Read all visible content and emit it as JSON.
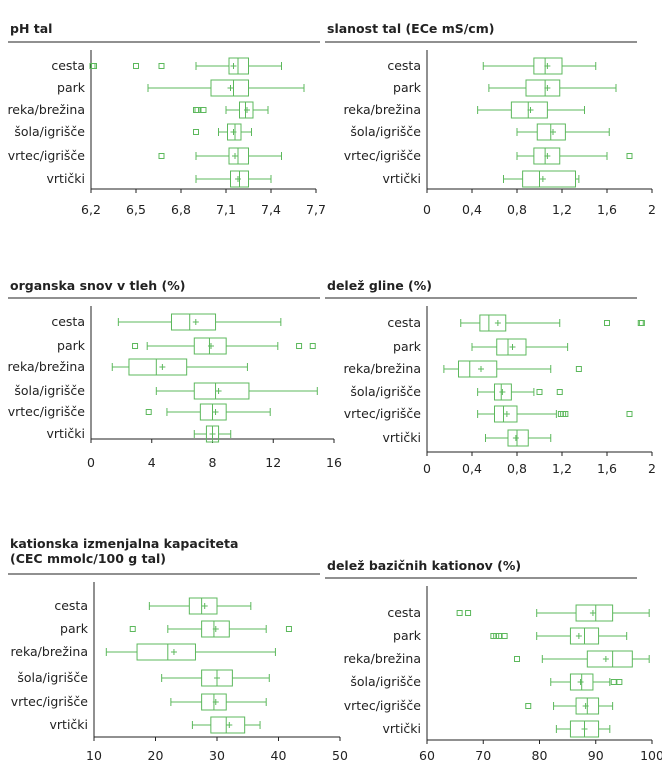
{
  "colors": {
    "box": "#5cb85c",
    "axis": "#222222",
    "text": "#222222"
  },
  "chart_data": [
    {
      "type": "boxplot",
      "title_lines": [
        "pH tal"
      ],
      "categories": [
        "cesta",
        "park",
        "reka/brežina",
        "šola/igrišče",
        "vrtec/igrišče",
        "vrtički"
      ],
      "xlim": [
        6.2,
        7.7
      ],
      "xticks": [
        6.2,
        6.5,
        6.8,
        7.1,
        7.4,
        7.7
      ],
      "xtick_labels": [
        "6,2",
        "6,5",
        "6,8",
        "7,1",
        "7,4",
        "7,7"
      ],
      "boxes": [
        {
          "whisker_low": 6.9,
          "q1": 7.12,
          "median": 7.18,
          "q3": 7.25,
          "whisker_high": 7.47,
          "mean": 7.15,
          "outliers": [
            6.21,
            6.22,
            6.5,
            6.67
          ]
        },
        {
          "whisker_low": 6.58,
          "q1": 7.0,
          "median": 7.15,
          "q3": 7.25,
          "whisker_high": 7.62,
          "mean": 7.13,
          "outliers": []
        },
        {
          "whisker_low": 7.1,
          "q1": 7.19,
          "median": 7.23,
          "q3": 7.28,
          "whisker_high": 7.38,
          "mean": 7.24,
          "outliers": [
            6.9,
            6.91,
            6.95
          ]
        },
        {
          "whisker_low": 7.05,
          "q1": 7.11,
          "median": 7.16,
          "q3": 7.2,
          "whisker_high": 7.27,
          "mean": 7.15,
          "outliers": [
            6.9
          ]
        },
        {
          "whisker_low": 6.9,
          "q1": 7.12,
          "median": 7.18,
          "q3": 7.25,
          "whisker_high": 7.47,
          "mean": 7.16,
          "outliers": [
            6.67
          ]
        },
        {
          "whisker_low": 6.9,
          "q1": 7.13,
          "median": 7.19,
          "q3": 7.25,
          "whisker_high": 7.4,
          "mean": 7.18,
          "outliers": []
        }
      ]
    },
    {
      "type": "boxplot",
      "title_lines": [
        "slanost tal (ECe mS/cm)"
      ],
      "categories": [
        "cesta",
        "park",
        "reka/brežina",
        "šola/igrišče",
        "vrtec/igrišče",
        "vrtički"
      ],
      "xlim": [
        0,
        2
      ],
      "xticks": [
        0,
        0.4,
        0.8,
        1.2,
        1.6,
        2
      ],
      "xtick_labels": [
        "0",
        "0,4",
        "0,8",
        "1,2",
        "1,6",
        "2"
      ],
      "boxes": [
        {
          "whisker_low": 0.5,
          "q1": 0.95,
          "median": 1.05,
          "q3": 1.2,
          "whisker_high": 1.5,
          "mean": 1.07,
          "outliers": []
        },
        {
          "whisker_low": 0.55,
          "q1": 0.88,
          "median": 1.05,
          "q3": 1.18,
          "whisker_high": 1.68,
          "mean": 1.07,
          "outliers": []
        },
        {
          "whisker_low": 0.45,
          "q1": 0.75,
          "median": 0.9,
          "q3": 1.07,
          "whisker_high": 1.4,
          "mean": 0.92,
          "outliers": []
        },
        {
          "whisker_low": 0.8,
          "q1": 0.98,
          "median": 1.1,
          "q3": 1.23,
          "whisker_high": 1.62,
          "mean": 1.12,
          "outliers": []
        },
        {
          "whisker_low": 0.8,
          "q1": 0.95,
          "median": 1.05,
          "q3": 1.18,
          "whisker_high": 1.6,
          "mean": 1.07,
          "outliers": [
            1.8
          ]
        },
        {
          "whisker_low": 0.68,
          "q1": 0.85,
          "median": 1.0,
          "q3": 1.32,
          "whisker_high": 1.35,
          "mean": 1.03,
          "outliers": []
        }
      ]
    },
    {
      "type": "boxplot",
      "title_lines": [
        "organska snov v tleh (%)"
      ],
      "categories": [
        "cesta",
        "park",
        "reka/brežina",
        "šola/igrišče",
        "vrtec/igrišče",
        "vrtički"
      ],
      "xlim": [
        0,
        16
      ],
      "xticks": [
        0,
        4,
        8,
        12,
        16
      ],
      "xtick_labels": [
        "0",
        "4",
        "8",
        "12",
        "16"
      ],
      "boxes": [
        {
          "whisker_low": 1.8,
          "q1": 5.3,
          "median": 6.5,
          "q3": 8.2,
          "whisker_high": 12.5,
          "mean": 6.9,
          "outliers": []
        },
        {
          "whisker_low": 3.7,
          "q1": 6.8,
          "median": 7.8,
          "q3": 8.9,
          "whisker_high": 12.3,
          "mean": 7.9,
          "outliers": [
            2.9,
            13.7,
            14.6
          ]
        },
        {
          "whisker_low": 1.4,
          "q1": 2.5,
          "median": 4.3,
          "q3": 6.3,
          "whisker_high": 10.3,
          "mean": 4.7,
          "outliers": []
        },
        {
          "whisker_low": 4.3,
          "q1": 6.8,
          "median": 8.2,
          "q3": 10.4,
          "whisker_high": 14.9,
          "mean": 8.4,
          "outliers": []
        },
        {
          "whisker_low": 5.0,
          "q1": 7.2,
          "median": 8.0,
          "q3": 8.9,
          "whisker_high": 11.8,
          "mean": 8.2,
          "outliers": [
            3.8
          ]
        },
        {
          "whisker_low": 6.8,
          "q1": 7.6,
          "median": 8.0,
          "q3": 8.4,
          "whisker_high": 9.2,
          "mean": 8.0,
          "outliers": []
        }
      ]
    },
    {
      "type": "boxplot",
      "title_lines": [
        "delež gline (%)"
      ],
      "categories": [
        "cesta",
        "park",
        "reka/brežina",
        "šola/igrišče",
        "vrtec/igrišče",
        "vrtički"
      ],
      "xlim": [
        0,
        2
      ],
      "xticks": [
        0,
        0.4,
        0.8,
        1.2,
        1.6,
        2
      ],
      "xtick_labels": [
        "0",
        "0,4",
        "0,8",
        "1,2",
        "1,6",
        "2"
      ],
      "boxes": [
        {
          "whisker_low": 0.3,
          "q1": 0.47,
          "median": 0.55,
          "q3": 0.7,
          "whisker_high": 1.18,
          "mean": 0.63,
          "outliers": [
            1.6,
            1.9,
            1.91
          ]
        },
        {
          "whisker_low": 0.4,
          "q1": 0.62,
          "median": 0.72,
          "q3": 0.88,
          "whisker_high": 1.25,
          "mean": 0.76,
          "outliers": []
        },
        {
          "whisker_low": 0.15,
          "q1": 0.28,
          "median": 0.38,
          "q3": 0.62,
          "whisker_high": 1.1,
          "mean": 0.48,
          "outliers": [
            1.35
          ]
        },
        {
          "whisker_low": 0.45,
          "q1": 0.6,
          "median": 0.66,
          "q3": 0.75,
          "whisker_high": 0.95,
          "mean": 0.67,
          "outliers": [
            1.0,
            1.18
          ]
        },
        {
          "whisker_low": 0.45,
          "q1": 0.6,
          "median": 0.68,
          "q3": 0.8,
          "whisker_high": 1.15,
          "mean": 0.71,
          "outliers": [
            1.19,
            1.21,
            1.23,
            1.8
          ]
        },
        {
          "whisker_low": 0.52,
          "q1": 0.72,
          "median": 0.8,
          "q3": 0.9,
          "whisker_high": 1.1,
          "mean": 0.79,
          "outliers": []
        }
      ]
    },
    {
      "type": "boxplot",
      "title_lines": [
        "kationska izmenjalna kapaciteta",
        "(CEC mmolc/100 g tal)"
      ],
      "categories": [
        "cesta",
        "park",
        "reka/brežina",
        "šola/igrišče",
        "vrtec/igrišče",
        "vrtički"
      ],
      "xlim": [
        10,
        50
      ],
      "xticks": [
        10,
        20,
        30,
        40,
        50
      ],
      "xtick_labels": [
        "10",
        "20",
        "30",
        "40",
        "50"
      ],
      "boxes": [
        {
          "whisker_low": 19.0,
          "q1": 25.5,
          "median": 27.5,
          "q3": 30.0,
          "whisker_high": 35.5,
          "mean": 28.0,
          "outliers": []
        },
        {
          "whisker_low": 22.0,
          "q1": 27.5,
          "median": 29.5,
          "q3": 32.0,
          "whisker_high": 38.0,
          "mean": 29.8,
          "outliers": [
            16.3,
            41.7
          ]
        },
        {
          "whisker_low": 12.0,
          "q1": 17.0,
          "median": 22.0,
          "q3": 26.5,
          "whisker_high": 39.5,
          "mean": 23.0,
          "outliers": []
        },
        {
          "whisker_low": 21.0,
          "q1": 27.5,
          "median": 30.0,
          "q3": 32.5,
          "whisker_high": 38.5,
          "mean": 30.0,
          "outliers": []
        },
        {
          "whisker_low": 22.5,
          "q1": 27.5,
          "median": 29.5,
          "q3": 31.5,
          "whisker_high": 38.0,
          "mean": 29.8,
          "outliers": []
        },
        {
          "whisker_low": 26.0,
          "q1": 29.0,
          "median": 31.5,
          "q3": 34.5,
          "whisker_high": 37.0,
          "mean": 32.0,
          "outliers": []
        }
      ]
    },
    {
      "type": "boxplot",
      "title_lines": [
        "delež bazičnih kationov (%)"
      ],
      "categories": [
        "cesta",
        "park",
        "reka/brežina",
        "šola/igrišče",
        "vrtec/igrišče",
        "vrtički"
      ],
      "xlim": [
        60,
        100
      ],
      "xticks": [
        60,
        70,
        80,
        90,
        100
      ],
      "xtick_labels": [
        "60",
        "70",
        "80",
        "90",
        "100"
      ],
      "boxes": [
        {
          "whisker_low": 79.5,
          "q1": 86.5,
          "median": 90.0,
          "q3": 93.0,
          "whisker_high": 99.5,
          "mean": 89.5,
          "outliers": [
            65.8,
            67.3
          ]
        },
        {
          "whisker_low": 79.5,
          "q1": 85.5,
          "median": 88.0,
          "q3": 90.5,
          "whisker_high": 95.5,
          "mean": 87.0,
          "outliers": [
            71.8,
            72.3,
            72.8,
            73.8
          ]
        },
        {
          "whisker_low": 80.5,
          "q1": 88.5,
          "median": 93.0,
          "q3": 96.5,
          "whisker_high": 99.5,
          "mean": 91.8,
          "outliers": [
            76.0
          ]
        },
        {
          "whisker_low": 82.0,
          "q1": 85.5,
          "median": 87.5,
          "q3": 89.5,
          "whisker_high": 92.5,
          "mean": 87.3,
          "outliers": [
            93.2,
            94.2
          ]
        },
        {
          "whisker_low": 82.5,
          "q1": 86.5,
          "median": 88.5,
          "q3": 90.5,
          "whisker_high": 93.0,
          "mean": 88.2,
          "outliers": [
            78.0
          ]
        },
        {
          "whisker_low": 83.0,
          "q1": 85.5,
          "median": 88.0,
          "q3": 90.5,
          "whisker_high": 92.5,
          "mean": 88.0,
          "outliers": []
        }
      ]
    }
  ]
}
